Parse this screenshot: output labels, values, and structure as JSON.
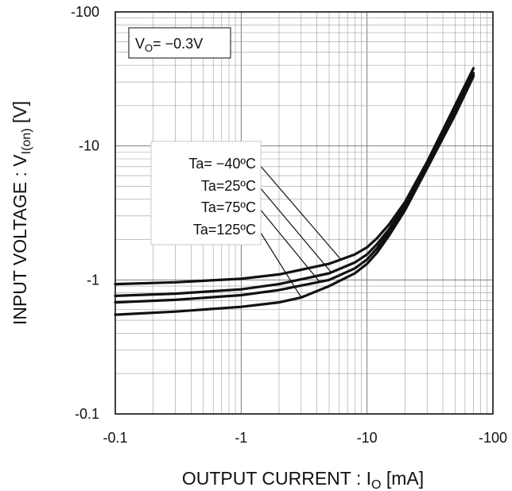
{
  "chart_data": {
    "type": "line",
    "x_scale": "log",
    "y_scale": "log",
    "xlim": [
      -0.1,
      -100
    ],
    "ylim": [
      -0.1,
      -100
    ],
    "x_ticks": [
      "-0.1",
      "-1",
      "-10",
      "-100"
    ],
    "y_ticks": [
      "-0.1",
      "-1",
      "-10",
      "-100"
    ],
    "xlabel": {
      "main": "OUTPUT CURRENT : I",
      "sub": "O",
      "unit": " [mA]"
    },
    "ylabel": {
      "main": "INPUT VOLTAGE : V",
      "sub": "I(on)",
      "unit": " [V]"
    },
    "condition": {
      "main": "V",
      "sub": "O",
      "rest": "= −0.3V"
    },
    "grid": true,
    "legend_placement": "upper-left, leader lines to curves",
    "line_color": "#111111",
    "series": [
      {
        "name": "Ta= −40ºC",
        "x": [
          -0.1,
          -0.3,
          -1,
          -2,
          -5,
          -8,
          -10,
          -12,
          -15,
          -20,
          -30,
          -50,
          -70
        ],
        "y": [
          -0.93,
          -0.96,
          -1.02,
          -1.1,
          -1.32,
          -1.55,
          -1.75,
          -2.05,
          -2.6,
          -3.8,
          -7.6,
          -20,
          -38
        ]
      },
      {
        "name": "Ta=25ºC",
        "x": [
          -0.1,
          -0.3,
          -1,
          -2,
          -5,
          -8,
          -10,
          -12,
          -15,
          -20,
          -30,
          -50,
          -70
        ],
        "y": [
          -0.76,
          -0.79,
          -0.85,
          -0.93,
          -1.12,
          -1.35,
          -1.55,
          -1.85,
          -2.4,
          -3.6,
          -7.4,
          -19,
          -35
        ]
      },
      {
        "name": "Ta=75ºC",
        "x": [
          -0.1,
          -0.3,
          -1,
          -2,
          -5,
          -8,
          -10,
          -12,
          -15,
          -20,
          -30,
          -50,
          -70
        ],
        "y": [
          -0.68,
          -0.71,
          -0.77,
          -0.84,
          -1.0,
          -1.22,
          -1.42,
          -1.72,
          -2.25,
          -3.4,
          -7.0,
          -18,
          -34
        ]
      },
      {
        "name": "Ta=125ºC",
        "x": [
          -0.1,
          -0.3,
          -1,
          -2,
          -3,
          -5,
          -8,
          -10,
          -12,
          -15,
          -20,
          -30,
          -50,
          -70
        ],
        "y": [
          -0.55,
          -0.58,
          -0.63,
          -0.68,
          -0.74,
          -0.9,
          -1.12,
          -1.32,
          -1.6,
          -2.15,
          -3.3,
          -6.8,
          -17,
          -33
        ]
      }
    ]
  }
}
